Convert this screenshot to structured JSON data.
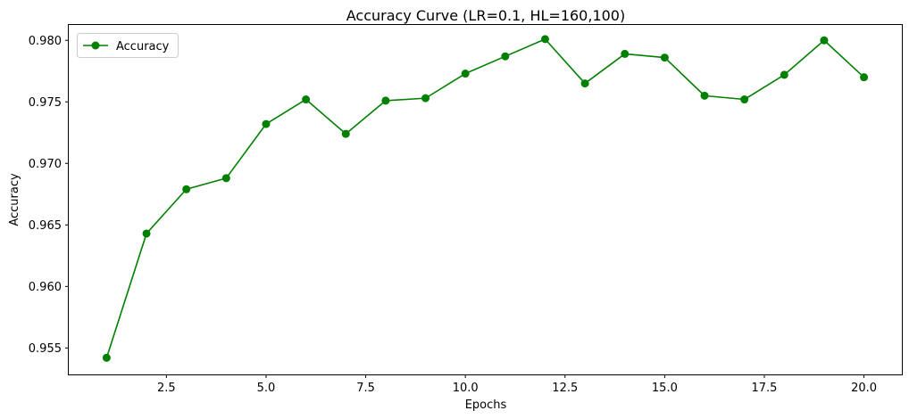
{
  "chart_data": {
    "type": "line",
    "title": "Accuracy Curve (LR=0.1, HL=160,100)",
    "xlabel": "Epochs",
    "ylabel": "Accuracy",
    "xlim": [
      0.05,
      20.95
    ],
    "ylim": [
      0.95285,
      0.98125
    ],
    "xticks": [
      2.5,
      5.0,
      7.5,
      10.0,
      12.5,
      15.0,
      17.5,
      20.0
    ],
    "xtick_labels": [
      "2.5",
      "5.0",
      "7.5",
      "10.0",
      "12.5",
      "15.0",
      "17.5",
      "20.0"
    ],
    "yticks": [
      0.955,
      0.96,
      0.965,
      0.97,
      0.975,
      0.98
    ],
    "ytick_labels": [
      "0.955",
      "0.960",
      "0.965",
      "0.970",
      "0.975",
      "0.980"
    ],
    "grid": false,
    "legend_position": "top-left",
    "series": [
      {
        "name": "Accuracy",
        "color": "#008000",
        "marker": "circle",
        "x": [
          1,
          2,
          3,
          4,
          5,
          6,
          7,
          8,
          9,
          10,
          11,
          12,
          13,
          14,
          15,
          16,
          17,
          18,
          19,
          20
        ],
        "y": [
          0.9542,
          0.9643,
          0.9679,
          0.9688,
          0.9732,
          0.9752,
          0.9724,
          0.9751,
          0.9753,
          0.9773,
          0.9787,
          0.9801,
          0.9765,
          0.9789,
          0.9786,
          0.9755,
          0.9752,
          0.9772,
          0.98,
          0.977
        ]
      }
    ]
  }
}
